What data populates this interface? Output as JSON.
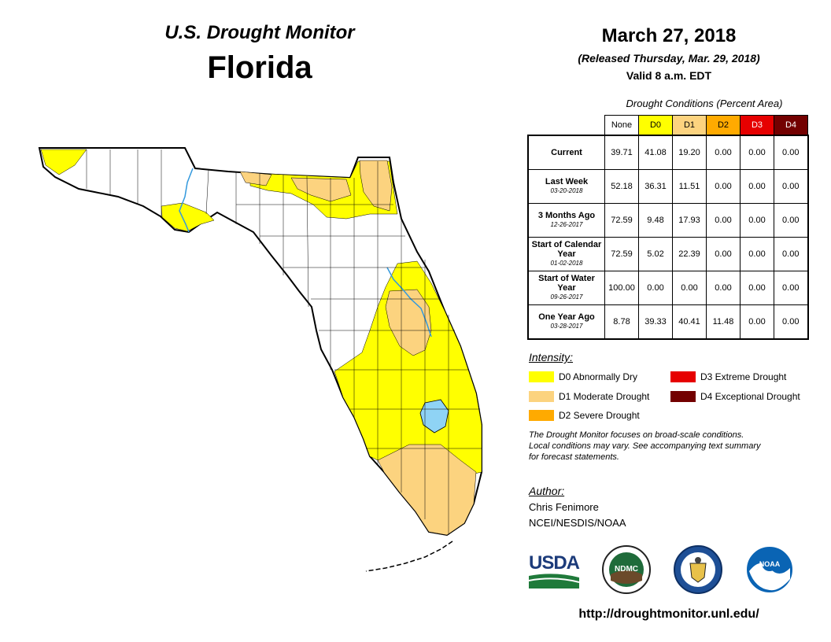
{
  "header": {
    "title": "U.S. Drought Monitor",
    "state": "Florida",
    "date": "March 27, 2018",
    "released": "(Released Thursday, Mar. 29, 2018)",
    "valid": "Valid 8 a.m. EDT"
  },
  "table": {
    "caption": "Drought Conditions (Percent Area)",
    "columns": [
      "None",
      "D0",
      "D1",
      "D2",
      "D3",
      "D4"
    ],
    "rows": [
      {
        "label": "Current",
        "sub": "",
        "values": [
          "39.71",
          "41.08",
          "19.20",
          "0.00",
          "0.00",
          "0.00"
        ]
      },
      {
        "label": "Last Week",
        "sub": "03-20-2018",
        "values": [
          "52.18",
          "36.31",
          "11.51",
          "0.00",
          "0.00",
          "0.00"
        ]
      },
      {
        "label": "3 Months Ago",
        "sub": "12-26-2017",
        "values": [
          "72.59",
          "9.48",
          "17.93",
          "0.00",
          "0.00",
          "0.00"
        ]
      },
      {
        "label": "Start of Calendar Year",
        "sub": "01-02-2018",
        "values": [
          "72.59",
          "5.02",
          "22.39",
          "0.00",
          "0.00",
          "0.00"
        ]
      },
      {
        "label": "Start of Water Year",
        "sub": "09-26-2017",
        "values": [
          "100.00",
          "0.00",
          "0.00",
          "0.00",
          "0.00",
          "0.00"
        ]
      },
      {
        "label": "One Year Ago",
        "sub": "03-28-2017",
        "values": [
          "8.78",
          "39.33",
          "40.41",
          "11.48",
          "0.00",
          "0.00"
        ]
      }
    ]
  },
  "legend": {
    "title": "Intensity:",
    "items": [
      {
        "label": "D0 Abnormally Dry",
        "color": "#ffff00"
      },
      {
        "label": "D1 Moderate Drought",
        "color": "#fcd37f"
      },
      {
        "label": "D2 Severe Drought",
        "color": "#ffaa00"
      },
      {
        "label": "D3 Extreme Drought",
        "color": "#e60000"
      },
      {
        "label": "D4 Exceptional Drought",
        "color": "#730000"
      }
    ]
  },
  "note": {
    "line1": "The Drought Monitor focuses on broad-scale conditions.",
    "line2": "Local conditions may vary. See accompanying text summary",
    "line3": "for forecast statements."
  },
  "author": {
    "title": "Author:",
    "name": "Chris Fenimore",
    "org": "NCEI/NESDIS/NOAA"
  },
  "logos": {
    "usda": "USDA",
    "ndmc": "NDMC",
    "noaa": "NOAA"
  },
  "map": {
    "colors": {
      "d0": "#ffff00",
      "d1": "#fcd37f",
      "water": "#8fd3f5",
      "river": "#3399dd"
    }
  },
  "url": "http://droughtmonitor.unl.edu/"
}
